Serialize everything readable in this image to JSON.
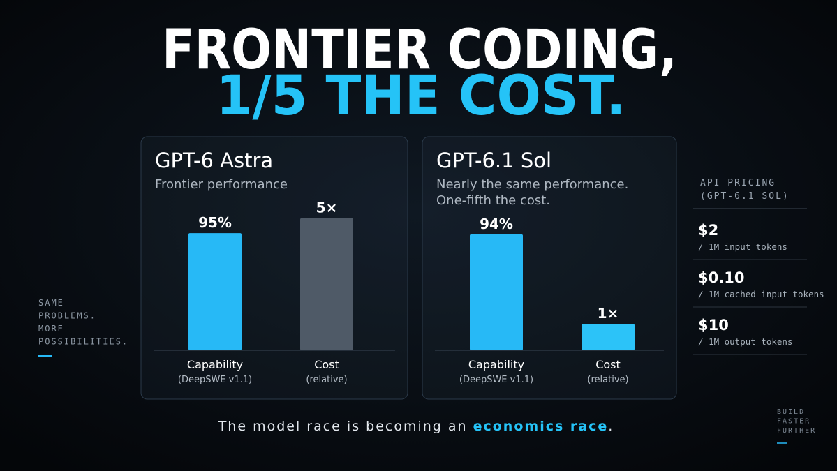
{
  "header": {
    "title_line1": "FRONTIER CODING,",
    "title_line2": "1/5 THE COST."
  },
  "chart_data": [
    {
      "type": "bar",
      "title": "GPT-6 Astra",
      "subtitle": [
        "Frontier performance"
      ],
      "ylim": [
        0,
        120
      ],
      "y2lim": [
        0,
        5.6
      ],
      "series": [
        {
          "name": "Capability",
          "subtitle": "(DeepSWE v1.1)",
          "color": "#27b9f6",
          "values": [
            95
          ],
          "value_labels": [
            "95%"
          ]
        },
        {
          "name": "Cost",
          "subtitle": "(relative)",
          "color": "#4f5a67",
          "axis": "y2",
          "values": [
            5
          ],
          "value_labels": [
            "5×"
          ]
        }
      ]
    },
    {
      "type": "bar",
      "title": "GPT-6.1 Sol",
      "subtitle": [
        "Nearly the same performance.",
        "One-fifth the cost."
      ],
      "ylim": [
        0,
        120
      ],
      "y2lim": [
        0,
        5.6
      ],
      "series": [
        {
          "name": "Capability",
          "subtitle": "(DeepSWE v1.1)",
          "color": "#27b9f6",
          "values": [
            94
          ],
          "value_labels": [
            "94%"
          ]
        },
        {
          "name": "Cost",
          "subtitle": "(relative)",
          "color": "#2cc3f8",
          "axis": "y2",
          "values": [
            1
          ],
          "value_labels": [
            "1×"
          ]
        }
      ]
    }
  ],
  "pricing": {
    "heading": [
      "API PRICING",
      "(GPT-6.1 SOL)"
    ],
    "items": [
      {
        "price": "$2",
        "unit": "/ 1M input tokens"
      },
      {
        "price": "$0.10",
        "unit": "/ 1M cached input tokens"
      },
      {
        "price": "$10",
        "unit": "/ 1M output tokens"
      }
    ]
  },
  "side_note": [
    "SAME",
    "PROBLEMS.",
    "MORE",
    "POSSIBILITIES."
  ],
  "footer": {
    "text": "The model race is becoming an ",
    "highlight": "economics race",
    "end": "."
  },
  "corner": [
    "BUILD",
    "FASTER",
    "FURTHER"
  ]
}
